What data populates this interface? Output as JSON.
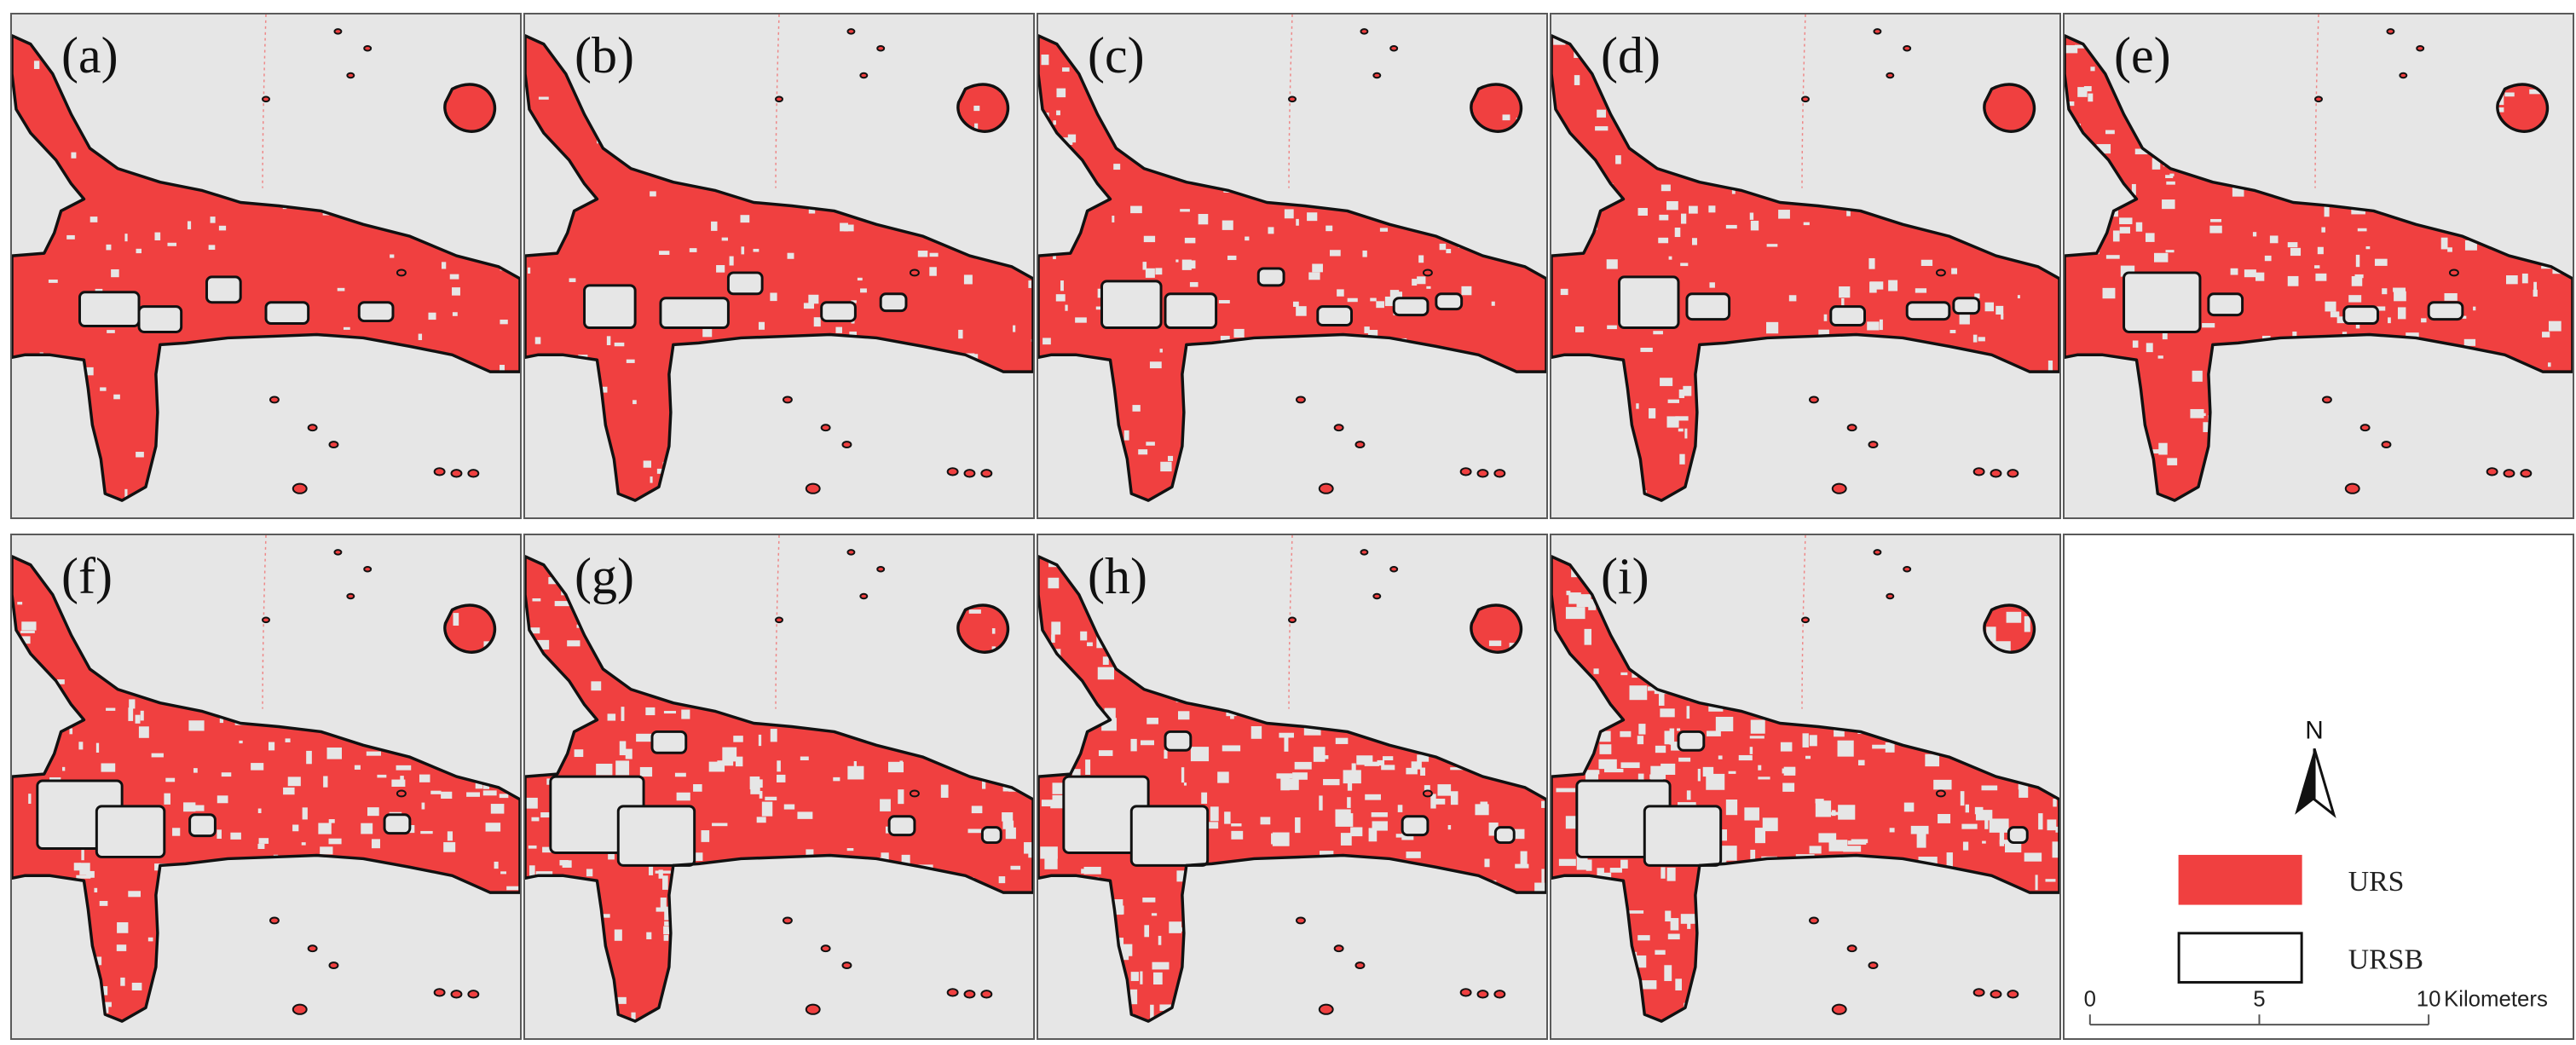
{
  "panels": [
    {
      "label": "(a)"
    },
    {
      "label": "(b)"
    },
    {
      "label": "(c)"
    },
    {
      "label": "(d)"
    },
    {
      "label": "(e)"
    },
    {
      "label": "(f)"
    },
    {
      "label": "(g)"
    },
    {
      "label": "(h)"
    },
    {
      "label": "(i)"
    }
  ],
  "legend": {
    "north": "N",
    "items": [
      {
        "label": "URS",
        "fill": "#f04040",
        "stroke": "#f04040"
      },
      {
        "label": "URSB",
        "fill": "#ffffff",
        "stroke": "#111111"
      }
    ],
    "scale": {
      "ticks": [
        "0",
        "5",
        "10"
      ],
      "unit": "Kilometers"
    }
  },
  "colors": {
    "urban": "#f04040",
    "background": "#e6e6e6",
    "boundary": "#111111"
  }
}
